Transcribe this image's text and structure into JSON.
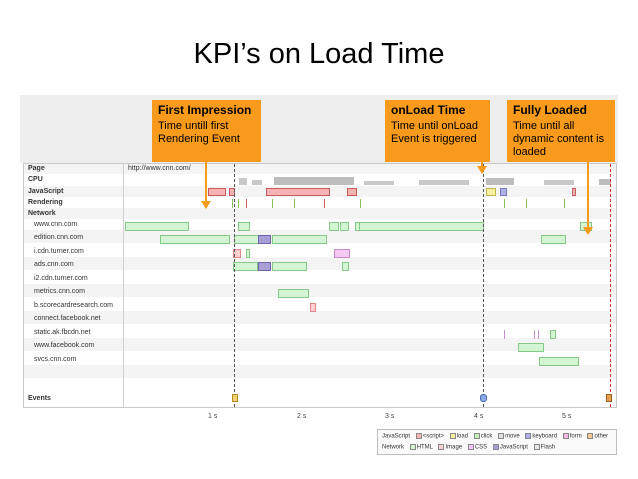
{
  "title": "KPI’s on Load Time",
  "callouts": [
    {
      "title": "First Impression",
      "desc": "Time untill first Rendering Event"
    },
    {
      "title": "onLoad Time",
      "desc": "Time until onLoad Event is triggered"
    },
    {
      "title": "Fully Loaded",
      "desc": "Time until all dynamic content is loaded"
    }
  ],
  "timeline": {
    "page_url": "http://www.cnn.com/",
    "row_labels": [
      "Page",
      "CPU",
      "JavaScript",
      "Rendering",
      "Network"
    ],
    "hosts": [
      "www.cnn.com",
      "edition.cnn.com",
      "i.cdn.turner.com",
      "ads.cnn.com",
      "i2.cdn.turner.com",
      "metrics.cnn.com",
      "b.scorecardresearch.com",
      "connect.facebook.net",
      "static.ak.fbcdn.net",
      "www.facebook.com",
      "svcs.cnn.com"
    ],
    "events_label": "Events",
    "ticks": [
      "1 s",
      "2 s",
      "3 s",
      "4 s",
      "5 s"
    ]
  },
  "legend": {
    "rows": [
      {
        "label": "JavaScript",
        "items": [
          {
            "name": "<script>",
            "color": "#f5b3b3"
          },
          {
            "name": "load",
            "color": "#f5f0a0"
          },
          {
            "name": "click",
            "color": "#c8f0b8"
          },
          {
            "name": "move",
            "color": "#e0e0e0"
          },
          {
            "name": "keyboard",
            "color": "#b0b0e8"
          },
          {
            "name": "form",
            "color": "#f0b8e0"
          },
          {
            "name": "other",
            "color": "#f0c890"
          }
        ]
      },
      {
        "label": "Network",
        "items": [
          {
            "name": "HTML",
            "color": "#d4f5d4"
          },
          {
            "name": "Image",
            "color": "#ffd0d0"
          },
          {
            "name": "CSS",
            "color": "#f4c9f4"
          },
          {
            "name": "JavaScript",
            "color": "#a79fd6"
          },
          {
            "name": "Flash",
            "color": "#e8e8e8"
          }
        ]
      }
    ]
  }
}
